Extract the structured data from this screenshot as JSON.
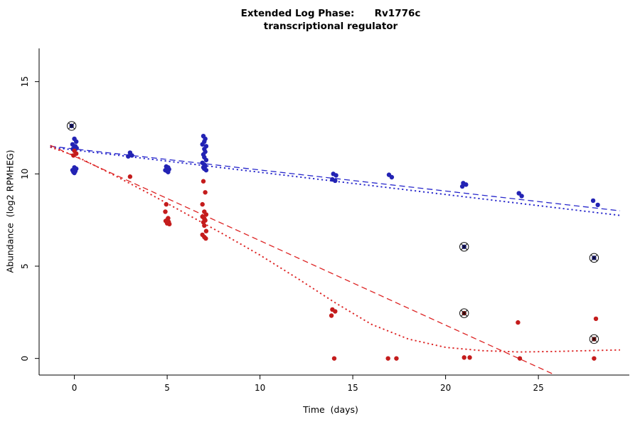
{
  "figure": {
    "title_line1": "Extended Log Phase:      Rv1776c",
    "title_line2": "transcriptional regulator",
    "xlabel": "Time  (days)",
    "ylabel": "Abundance  (log2 RPMHEG)"
  },
  "chart_data": {
    "type": "scatter",
    "title": "Extended Log Phase: Rv1776c transcriptional regulator",
    "xlabel": "Time (days)",
    "ylabel": "Abundance (log2 RPMHEG)",
    "xlim": [
      -1.9,
      29.9
    ],
    "ylim": [
      -0.9,
      16.8
    ],
    "xticks": [
      0,
      5,
      10,
      15,
      20,
      25
    ],
    "yticks": [
      0,
      5,
      10,
      15
    ],
    "grid": false,
    "legend": "none",
    "series": [
      {
        "name": "blue-series",
        "color": "#2323b4",
        "points": [
          [
            0.0,
            11.9
          ],
          [
            0.1,
            11.75
          ],
          [
            -0.1,
            11.6
          ],
          [
            0.05,
            11.5
          ],
          [
            0.0,
            11.45
          ],
          [
            0.12,
            11.4
          ],
          [
            -0.08,
            11.35
          ],
          [
            0.0,
            10.35
          ],
          [
            0.1,
            10.28
          ],
          [
            -0.1,
            10.2
          ],
          [
            0.05,
            10.15
          ],
          [
            -0.05,
            10.1
          ],
          [
            0.0,
            10.05
          ],
          [
            3.0,
            11.15
          ],
          [
            3.1,
            11.0
          ],
          [
            2.9,
            10.95
          ],
          [
            4.95,
            10.4
          ],
          [
            5.05,
            10.35
          ],
          [
            5.0,
            10.3
          ],
          [
            5.1,
            10.25
          ],
          [
            4.9,
            10.2
          ],
          [
            5.0,
            10.15
          ],
          [
            5.05,
            10.1
          ],
          [
            6.95,
            12.05
          ],
          [
            7.05,
            11.9
          ],
          [
            7.0,
            11.75
          ],
          [
            6.9,
            11.6
          ],
          [
            7.1,
            11.5
          ],
          [
            7.0,
            11.35
          ],
          [
            7.05,
            11.2
          ],
          [
            6.95,
            11.05
          ],
          [
            7.0,
            10.9
          ],
          [
            7.1,
            10.75
          ],
          [
            6.9,
            10.6
          ],
          [
            7.0,
            10.5
          ],
          [
            7.05,
            10.42
          ],
          [
            6.95,
            10.35
          ],
          [
            7.0,
            10.28
          ],
          [
            7.1,
            10.2
          ],
          [
            13.95,
            10.0
          ],
          [
            14.1,
            9.92
          ],
          [
            13.9,
            9.7
          ],
          [
            14.05,
            9.63
          ],
          [
            16.95,
            9.95
          ],
          [
            17.1,
            9.82
          ],
          [
            20.95,
            9.5
          ],
          [
            21.1,
            9.42
          ],
          [
            20.9,
            9.32
          ],
          [
            23.95,
            8.95
          ],
          [
            24.1,
            8.8
          ],
          [
            27.95,
            8.55
          ],
          [
            28.2,
            8.32
          ]
        ]
      },
      {
        "name": "red-series",
        "color": "#c41c1c",
        "points": [
          [
            0.0,
            11.25
          ],
          [
            0.1,
            11.1
          ],
          [
            -0.05,
            11.0
          ],
          [
            3.0,
            9.85
          ],
          [
            4.95,
            8.35
          ],
          [
            4.9,
            7.95
          ],
          [
            5.05,
            7.6
          ],
          [
            5.0,
            7.5
          ],
          [
            4.92,
            7.45
          ],
          [
            5.08,
            7.4
          ],
          [
            5.0,
            7.32
          ],
          [
            5.12,
            7.28
          ],
          [
            6.95,
            9.6
          ],
          [
            7.05,
            9.0
          ],
          [
            6.9,
            8.35
          ],
          [
            7.0,
            7.95
          ],
          [
            7.1,
            7.8
          ],
          [
            6.9,
            7.68
          ],
          [
            7.0,
            7.58
          ],
          [
            7.05,
            7.48
          ],
          [
            6.95,
            7.38
          ],
          [
            7.0,
            7.2
          ],
          [
            7.1,
            6.9
          ],
          [
            6.9,
            6.7
          ],
          [
            7.0,
            6.58
          ],
          [
            7.08,
            6.5
          ],
          [
            13.9,
            2.65
          ],
          [
            14.05,
            2.55
          ],
          [
            13.85,
            2.32
          ],
          [
            14.0,
            0.0
          ],
          [
            16.9,
            0.0
          ],
          [
            17.35,
            0.0
          ],
          [
            21.0,
            0.05
          ],
          [
            21.3,
            0.05
          ],
          [
            23.9,
            1.95
          ],
          [
            24.0,
            0.0
          ],
          [
            28.1,
            2.15
          ],
          [
            28.0,
            0.0
          ]
        ]
      }
    ],
    "flagged_points": [
      {
        "series": "blue-series",
        "x": -0.15,
        "y": 12.6,
        "color": "#17178c"
      },
      {
        "series": "blue-series",
        "x": 21.0,
        "y": 6.05,
        "color": "#17178c"
      },
      {
        "series": "blue-series",
        "x": 28.0,
        "y": 5.45,
        "color": "#17178c"
      },
      {
        "series": "red-series",
        "x": 21.0,
        "y": 2.45,
        "color": "#7a1010"
      },
      {
        "series": "red-series",
        "x": 28.0,
        "y": 1.05,
        "color": "#7a1010"
      }
    ],
    "fit_lines": [
      {
        "name": "blue-dashed-fit",
        "color": "#2828cc",
        "style": "dashed",
        "points": [
          [
            -1.3,
            11.5
          ],
          [
            29.4,
            8.0
          ]
        ]
      },
      {
        "name": "blue-dotted-fit",
        "color": "#2828cc",
        "style": "dotted",
        "points": [
          [
            -1.3,
            11.45
          ],
          [
            29.4,
            7.75
          ]
        ]
      },
      {
        "name": "red-dashed-fit",
        "color": "#dd2424",
        "style": "dashed",
        "points": [
          [
            -1.3,
            11.55
          ],
          [
            25.8,
            -0.85
          ]
        ]
      },
      {
        "name": "red-dotted-fit",
        "color": "#dd2424",
        "style": "dotted",
        "points": [
          [
            -1.3,
            11.45
          ],
          [
            0,
            11.0
          ],
          [
            2,
            10.0
          ],
          [
            4,
            8.95
          ],
          [
            6,
            7.85
          ],
          [
            8,
            6.75
          ],
          [
            10,
            5.6
          ],
          [
            12,
            4.35
          ],
          [
            14,
            3.05
          ],
          [
            16,
            1.85
          ],
          [
            18,
            1.05
          ],
          [
            20,
            0.6
          ],
          [
            22,
            0.42
          ],
          [
            24,
            0.35
          ],
          [
            26,
            0.38
          ],
          [
            28,
            0.43
          ],
          [
            29.4,
            0.46
          ]
        ]
      }
    ]
  }
}
